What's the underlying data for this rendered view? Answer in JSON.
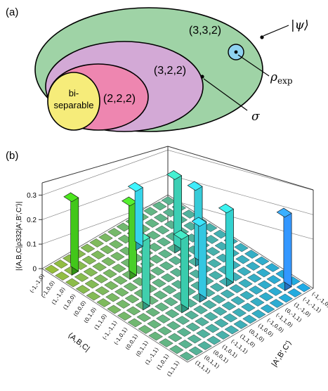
{
  "panel_a": {
    "label": "(a)",
    "sets": {
      "biseparable_line1": "bi-",
      "biseparable_line2": "separable",
      "s222": "(2,2,2)",
      "s322": "(3,2,2)",
      "s332": "(3,3,2)"
    },
    "annotations": {
      "psi": "|ψ⟩",
      "rho_exp_symbol": "ρ",
      "rho_exp_sub": "exp",
      "sigma": "σ"
    },
    "colors": {
      "s332": "#9fd3a6",
      "s322": "#d3a9d6",
      "s222": "#ee86b0",
      "biseparable": "#f6ec7a",
      "rho_dot": "#8fd2f0"
    }
  },
  "panel_b": {
    "label": "(b)",
    "zlabel": "|⟨A,B,C|ρ332|A',B',C'⟩|",
    "ylabel_left": "⟨A,B,C|",
    "ylabel_right": "|A',B',C'⟩",
    "z_ticks": [
      "0",
      "0.1",
      "0.2",
      "0.3"
    ],
    "left_ticks": [
      "(-1,-1,0)",
      "(-1,0,0)",
      "(1,-1,0)",
      "(1,0,0)",
      "(0,0,0)",
      "(0,1,0)",
      "(1,1,0)",
      "(-1,-1,1)",
      "(-1,0,1)",
      "(0,0,1)",
      "(0,1,1)",
      "(1,-1,1)",
      "(1,0,1)",
      "(1,1,1)"
    ],
    "right_ticks": [
      "(1,1,1)",
      "(0,1,1)",
      "(0,0,1)",
      "(1,0,1)",
      "(-1,1,1)",
      "(1,1,0)",
      "(0,1,0)",
      "(1,0,0)",
      "(-1,0,0)",
      "(-1,1,0)",
      "(0,-1,1)",
      "(1,-1,0)",
      "(-1,-1,1)",
      "(-1,-1,0)"
    ],
    "bars": [
      {
        "row": 1,
        "col": 1,
        "value": 0.3,
        "color": "#3db818"
      },
      {
        "row": 4,
        "col": 4,
        "value": 0.3,
        "color": "#44c026"
      },
      {
        "row": 4,
        "col": 9,
        "value": 0.3,
        "color": "#38c0a8"
      },
      {
        "row": 9,
        "col": 4,
        "value": 0.3,
        "color": "#36bda0"
      },
      {
        "row": 9,
        "col": 9,
        "value": 0.3,
        "color": "#2fc2c0"
      },
      {
        "row": 6,
        "col": 9,
        "value": 0.31,
        "color": "#32bcc8"
      },
      {
        "row": 9,
        "col": 6,
        "value": 0.31,
        "color": "#2fb8d0"
      },
      {
        "row": 12,
        "col": 12,
        "value": 0.3,
        "color": "#2f8cf0"
      },
      {
        "row": 7,
        "col": 2,
        "value": 0.28,
        "color": "#3cc0a0"
      },
      {
        "row": 2,
        "col": 7,
        "value": 0.24,
        "color": "#32c4d8"
      }
    ]
  }
}
